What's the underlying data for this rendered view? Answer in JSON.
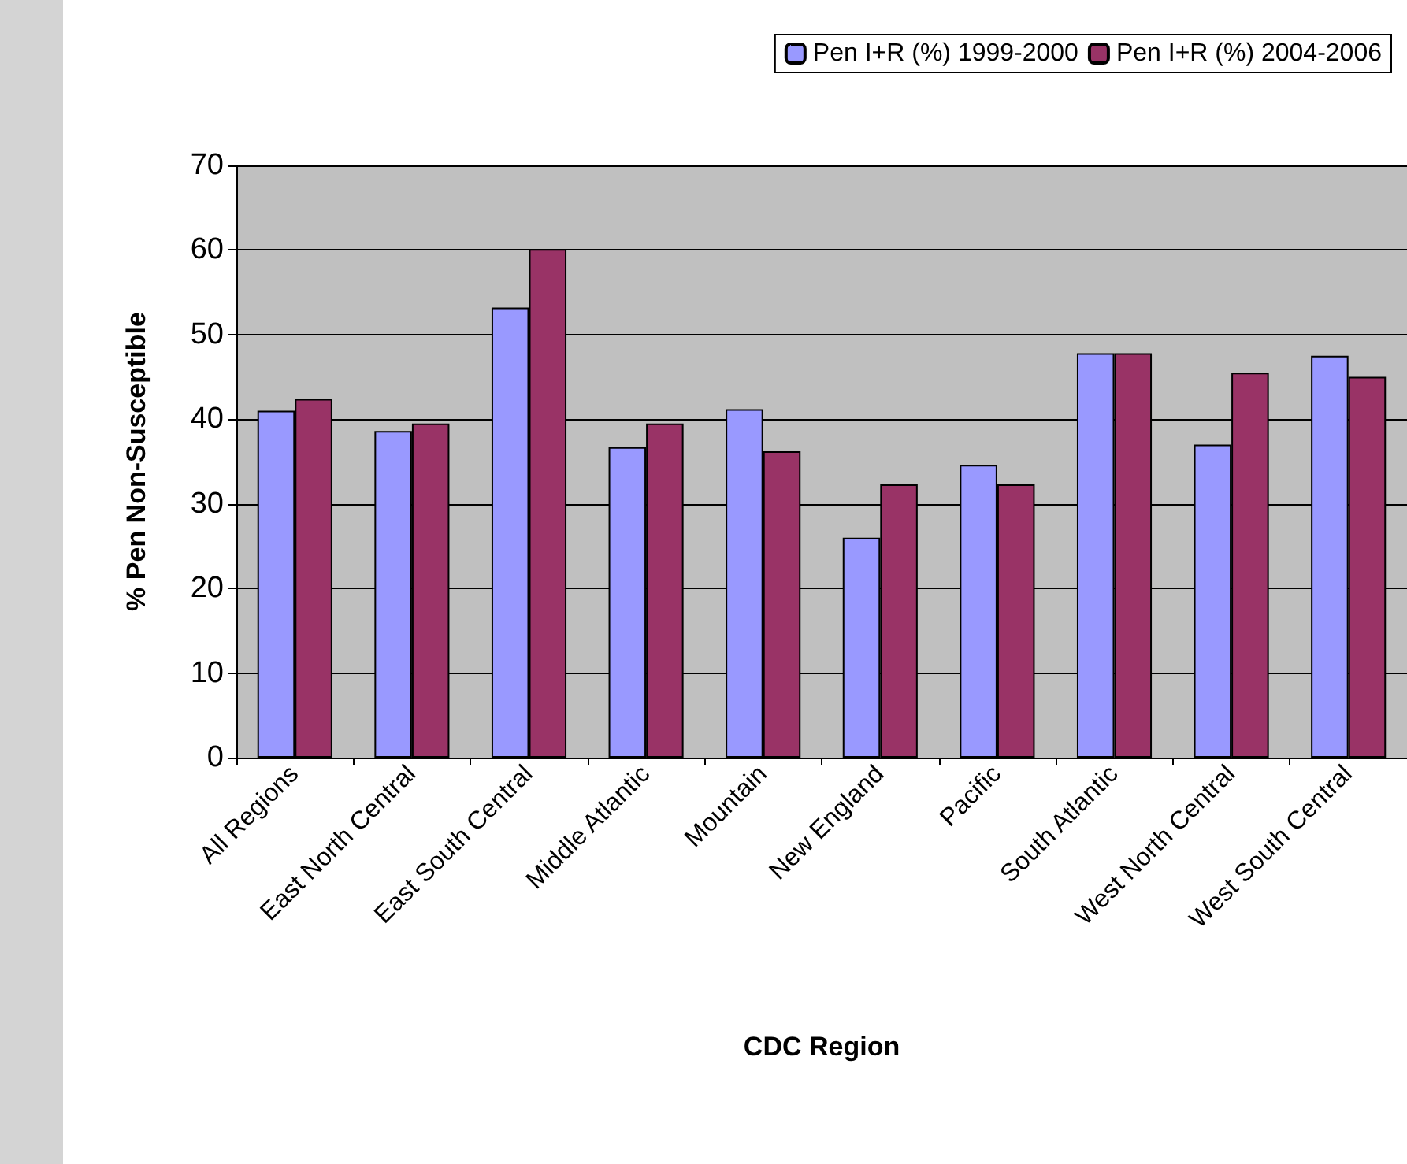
{
  "chart_data": {
    "type": "bar",
    "xlabel": "CDC Region",
    "ylabel": "% Pen Non-Susceptible",
    "categories": [
      "All Regions",
      "East North Central",
      "East South Central",
      "Middle Atlantic",
      "Mountain",
      "New England",
      "Pacific",
      "South Atlantic",
      "West North Central",
      "West South Central"
    ],
    "series": [
      {
        "name": "Pen I+R (%) 1999-2000",
        "color": "#9999ff",
        "values": [
          41,
          38.6,
          53.2,
          36.7,
          41.2,
          26,
          34.6,
          47.8,
          37,
          47.5
        ]
      },
      {
        "name": "Pen I+R (%) 2004-2006",
        "color": "#993366",
        "values": [
          42.4,
          39.5,
          60.1,
          39.5,
          36.2,
          32.3,
          32.3,
          47.8,
          45.5,
          45
        ]
      }
    ],
    "ylim": [
      0,
      70
    ],
    "yticks": [
      0,
      10,
      20,
      30,
      40,
      50,
      60,
      70
    ],
    "grid": "y",
    "legend": "top right"
  }
}
